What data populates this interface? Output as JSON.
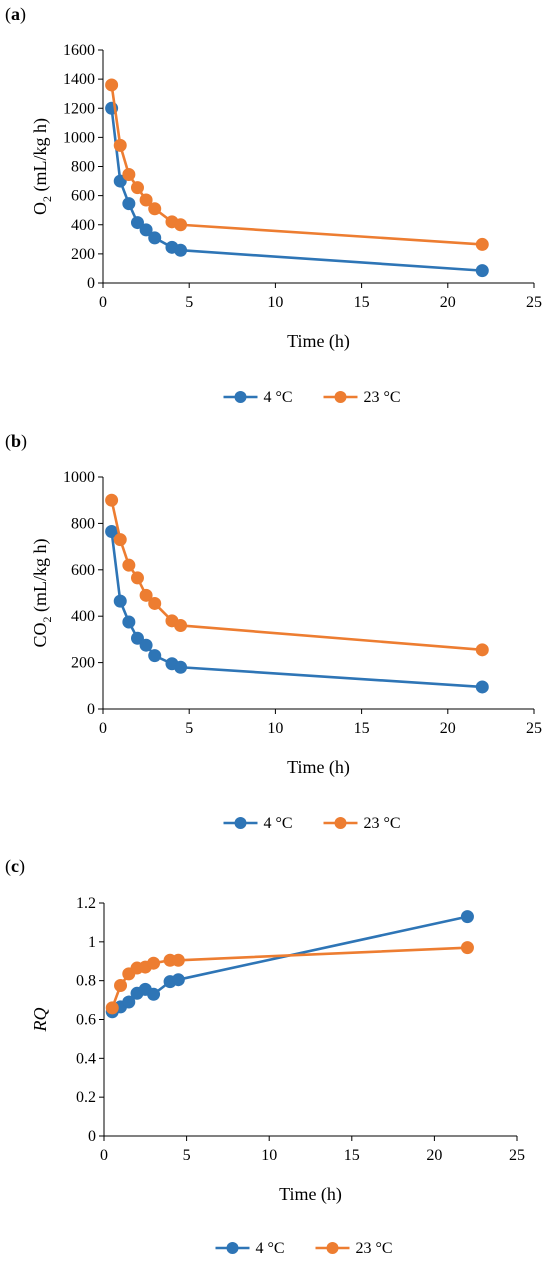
{
  "colors": {
    "series_4c": "#2e75b6",
    "series_23c": "#ed7d31"
  },
  "chart_data": [
    {
      "type": "line",
      "panel_letter": "a",
      "ylabel_main": "O",
      "ylabel_sub": "2",
      "ylabel_rest": " (mL/kg h)",
      "xlabel": "Time (h)",
      "xlim": [
        0,
        25
      ],
      "xticks": [
        0,
        5,
        10,
        15,
        20,
        25
      ],
      "ylim": [
        0,
        1600
      ],
      "yticks": [
        0,
        200,
        400,
        600,
        800,
        1000,
        1200,
        1400,
        1600
      ],
      "grid": false,
      "legend_position": "bottom",
      "series": [
        {
          "name": "4 °C",
          "x": [
            0.5,
            1,
            1.5,
            2,
            2.5,
            3,
            4,
            4.5,
            22
          ],
          "y": [
            1200,
            700,
            545,
            415,
            365,
            310,
            245,
            225,
            85
          ]
        },
        {
          "name": "23 °C",
          "x": [
            0.5,
            1,
            1.5,
            2,
            2.5,
            3,
            4,
            4.5,
            22
          ],
          "y": [
            1360,
            945,
            745,
            655,
            570,
            510,
            420,
            400,
            265
          ]
        }
      ]
    },
    {
      "type": "line",
      "panel_letter": "b",
      "ylabel_main": "CO",
      "ylabel_sub": "2",
      "ylabel_rest": " (mL/kg h)",
      "xlabel": "Time (h)",
      "xlim": [
        0,
        25
      ],
      "xticks": [
        0,
        5,
        10,
        15,
        20,
        25
      ],
      "ylim": [
        0,
        1000
      ],
      "yticks": [
        0,
        200,
        400,
        600,
        800,
        1000
      ],
      "grid": false,
      "legend_position": "bottom",
      "series": [
        {
          "name": "4 °C",
          "x": [
            0.5,
            1,
            1.5,
            2,
            2.5,
            3,
            4,
            4.5,
            22
          ],
          "y": [
            765,
            465,
            375,
            305,
            275,
            230,
            195,
            180,
            95
          ]
        },
        {
          "name": "23 °C",
          "x": [
            0.5,
            1,
            1.5,
            2,
            2.5,
            3,
            4,
            4.5,
            22
          ],
          "y": [
            900,
            730,
            620,
            565,
            490,
            455,
            380,
            360,
            255
          ]
        }
      ]
    },
    {
      "type": "line",
      "panel_letter": "c",
      "ylabel_main": "RQ",
      "ylabel_sub": "",
      "ylabel_rest": "",
      "xlabel": "Time (h)",
      "xlim": [
        0,
        25
      ],
      "xticks": [
        0,
        5,
        10,
        15,
        20,
        25
      ],
      "ylim": [
        0,
        1.2
      ],
      "yticks": [
        0,
        0.2,
        0.4,
        0.6,
        0.8,
        1,
        1.2
      ],
      "grid": false,
      "legend_position": "bottom",
      "series": [
        {
          "name": "4 °C",
          "x": [
            0.5,
            1,
            1.5,
            2,
            2.5,
            3,
            4,
            4.5,
            22
          ],
          "y": [
            0.64,
            0.665,
            0.69,
            0.735,
            0.755,
            0.73,
            0.795,
            0.805,
            1.13
          ]
        },
        {
          "name": "23 °C",
          "x": [
            0.5,
            1,
            1.5,
            2,
            2.5,
            3,
            4,
            4.5,
            22
          ],
          "y": [
            0.66,
            0.775,
            0.835,
            0.865,
            0.87,
            0.89,
            0.905,
            0.905,
            0.97
          ]
        }
      ]
    }
  ]
}
